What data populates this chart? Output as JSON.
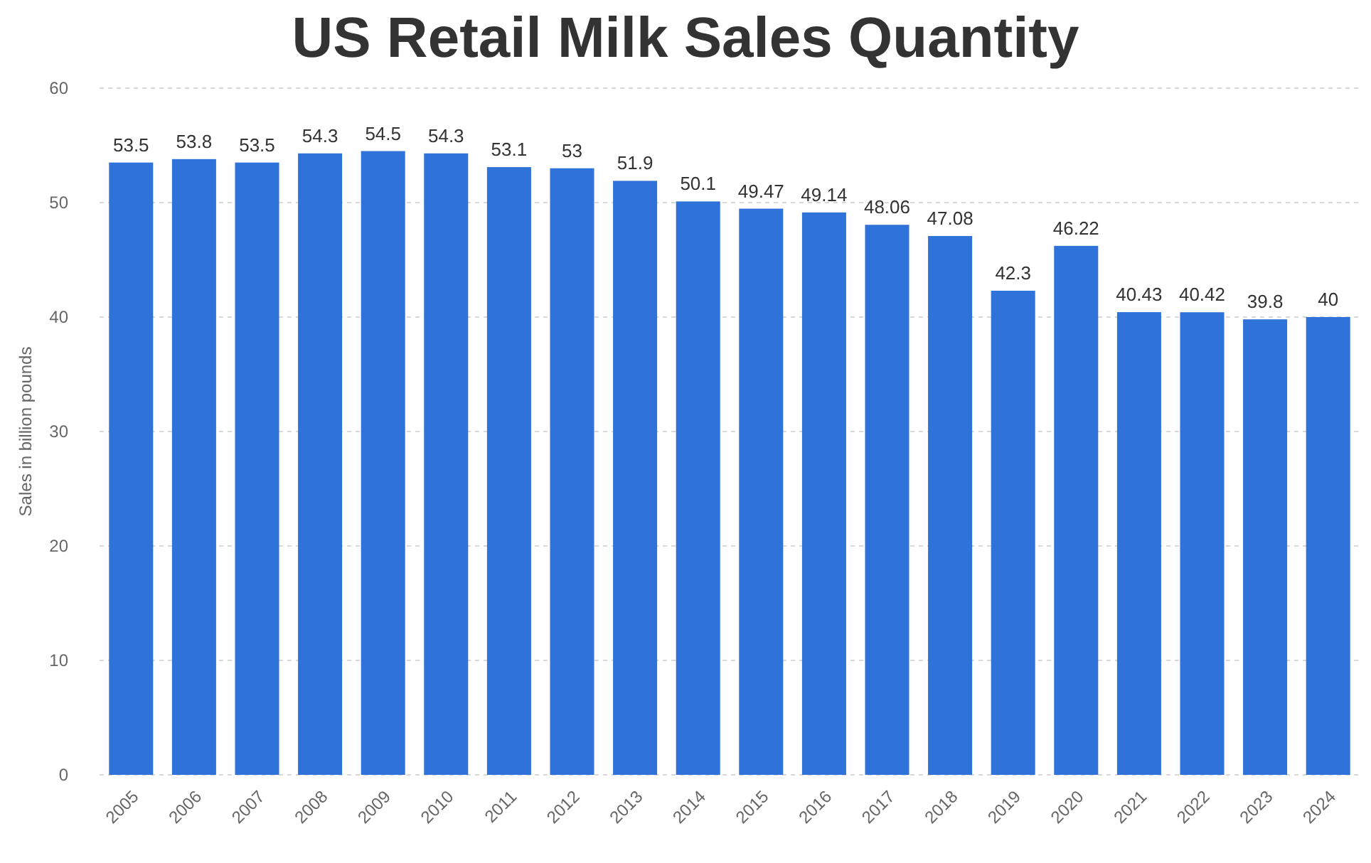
{
  "chart_data": {
    "type": "bar",
    "title": "US Retail Milk Sales Quantity",
    "ylabel": "Sales in billion pounds",
    "categories": [
      "2005",
      "2006",
      "2007",
      "2008",
      "2009",
      "2010",
      "2011",
      "2012",
      "2013",
      "2014",
      "2015",
      "2016",
      "2017",
      "2018",
      "2019",
      "2020",
      "2021",
      "2022",
      "2023",
      "2024"
    ],
    "values": [
      53.5,
      53.8,
      53.5,
      54.3,
      54.5,
      54.3,
      53.1,
      53,
      51.9,
      50.1,
      49.47,
      49.14,
      48.06,
      47.08,
      42.3,
      46.22,
      40.43,
      40.42,
      39.8,
      40
    ],
    "color": "#2f72d9",
    "ylim": [
      0,
      60
    ],
    "yticks": [
      0,
      10,
      20,
      30,
      40,
      50,
      60
    ],
    "grid": "y",
    "data_labels": true
  }
}
